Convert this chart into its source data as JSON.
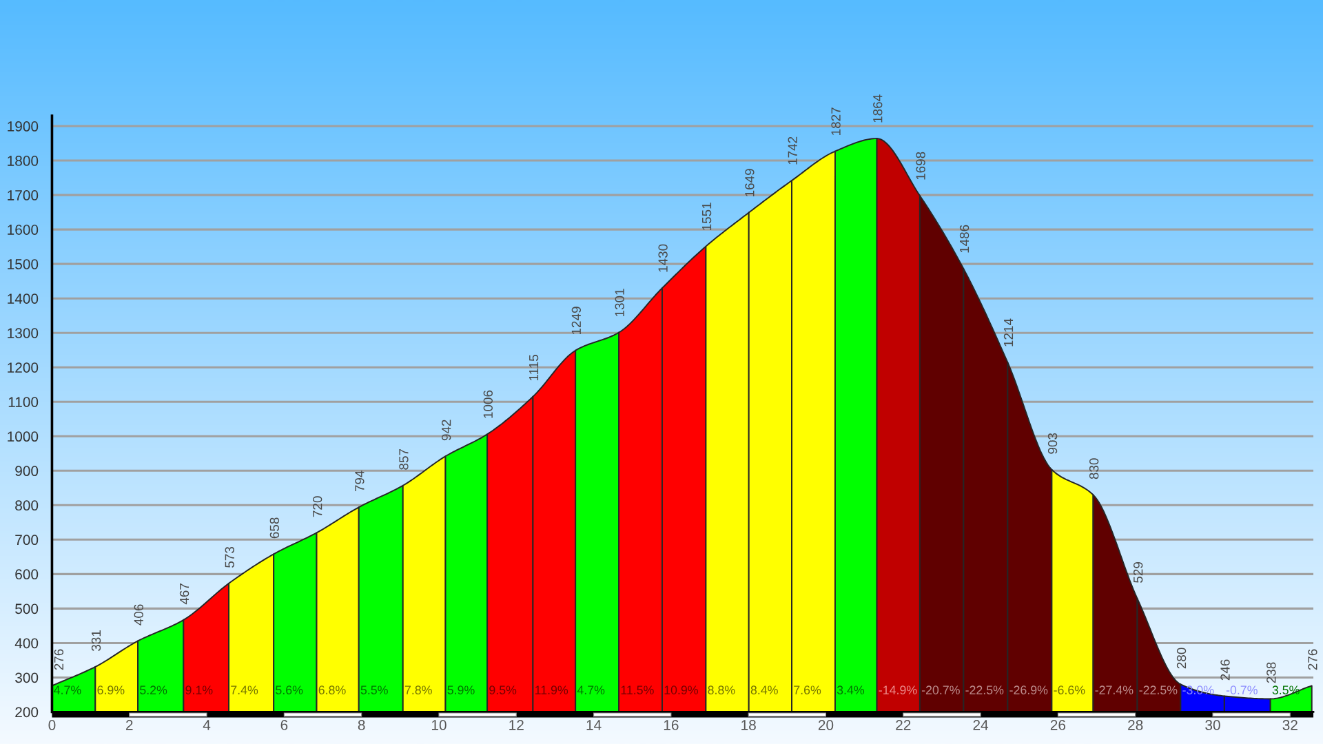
{
  "chart_data": {
    "type": "area",
    "series": [
      {
        "color": "#00ff00",
        "x": [
          0,
          1.12
        ],
        "values": [
          276,
          331
        ],
        "value_labels": [
          "276",
          "331"
        ]
      },
      {
        "color": "#ffff00",
        "x": [
          1.12,
          2.22
        ],
        "values": [
          331,
          406
        ],
        "value_labels": [
          null,
          "406"
        ]
      },
      {
        "color": "#00ff00",
        "x": [
          2.22,
          3.4
        ],
        "values": [
          406,
          467
        ],
        "value_labels": [
          null,
          "467"
        ]
      },
      {
        "color": "#ff0000",
        "x": [
          3.4,
          4.57
        ],
        "values": [
          467,
          573
        ],
        "value_labels": [
          null,
          "573"
        ]
      },
      {
        "color": "#ffff00",
        "x": [
          4.57,
          5.73
        ],
        "values": [
          573,
          658
        ],
        "value_labels": [
          null,
          "658"
        ]
      },
      {
        "color": "#00ff00",
        "x": [
          5.73,
          6.84
        ],
        "values": [
          658,
          720
        ],
        "value_labels": [
          null,
          "720"
        ]
      },
      {
        "color": "#ffff00",
        "x": [
          6.84,
          7.93
        ],
        "values": [
          720,
          794
        ],
        "value_labels": [
          null,
          "794"
        ]
      },
      {
        "color": "#00ff00",
        "x": [
          7.93,
          9.07
        ],
        "values": [
          794,
          857
        ],
        "value_labels": [
          null,
          "857"
        ]
      },
      {
        "color": "#ffff00",
        "x": [
          9.07,
          10.17
        ],
        "values": [
          857,
          942
        ],
        "value_labels": [
          null,
          "942"
        ]
      },
      {
        "color": "#00ff00",
        "x": [
          10.17,
          11.25
        ],
        "values": [
          942,
          1006
        ],
        "value_labels": [
          null,
          "1006"
        ]
      },
      {
        "color": "#ff0000",
        "x": [
          11.25,
          12.43
        ],
        "values": [
          1006,
          1115
        ],
        "value_labels": [
          null,
          "1115"
        ]
      },
      {
        "color": "#ff0000",
        "x": [
          12.43,
          13.53
        ],
        "values": [
          1115,
          1249
        ],
        "value_labels": [
          null,
          "1249"
        ]
      },
      {
        "color": "#00ff00",
        "x": [
          13.53,
          14.65
        ],
        "values": [
          1249,
          1301
        ],
        "value_labels": [
          null,
          "1301"
        ]
      },
      {
        "color": "#ff0000",
        "x": [
          14.65,
          15.77
        ],
        "values": [
          1301,
          1430
        ],
        "value_labels": [
          null,
          "1430"
        ]
      },
      {
        "color": "#ff0000",
        "x": [
          15.77,
          16.9
        ],
        "values": [
          1430,
          1551
        ],
        "value_labels": [
          null,
          "1551"
        ]
      },
      {
        "color": "#ffff00",
        "x": [
          16.9,
          18.01
        ],
        "values": [
          1551,
          1649
        ],
        "value_labels": [
          null,
          "1649"
        ]
      },
      {
        "color": "#ffff00",
        "x": [
          18.01,
          19.12
        ],
        "values": [
          1649,
          1742
        ],
        "value_labels": [
          null,
          "1742"
        ]
      },
      {
        "color": "#ffff00",
        "x": [
          19.12,
          20.24
        ],
        "values": [
          1742,
          1827
        ],
        "value_labels": [
          null,
          "1827"
        ]
      },
      {
        "color": "#00ff00",
        "x": [
          20.24,
          21.32
        ],
        "values": [
          1827,
          1864
        ],
        "value_labels": [
          null,
          "1864"
        ]
      },
      {
        "color": "#c00000",
        "x": [
          21.32,
          22.43
        ],
        "values": [
          1864,
          1698
        ],
        "value_labels": [
          null,
          "1698"
        ]
      },
      {
        "color": "#600000",
        "x": [
          22.43,
          23.56
        ],
        "values": [
          1698,
          1486
        ],
        "value_labels": [
          null,
          "1486"
        ]
      },
      {
        "color": "#600000",
        "x": [
          23.56,
          24.7
        ],
        "values": [
          1486,
          1214
        ],
        "value_labels": [
          null,
          "1214"
        ]
      },
      {
        "color": "#600000",
        "x": [
          24.7,
          25.84
        ],
        "values": [
          1214,
          903
        ],
        "value_labels": [
          null,
          "903"
        ]
      },
      {
        "color": "#ffff00",
        "x": [
          25.84,
          26.91
        ],
        "values": [
          903,
          830
        ],
        "value_labels": [
          null,
          "830"
        ]
      },
      {
        "color": "#600000",
        "x": [
          26.91,
          28.05
        ],
        "values": [
          830,
          529
        ],
        "value_labels": [
          null,
          "529"
        ]
      },
      {
        "color": "#600000",
        "x": [
          28.05,
          29.17
        ],
        "values": [
          529,
          280
        ],
        "value_labels": [
          null,
          "280"
        ]
      },
      {
        "color": "#0000ff",
        "x": [
          29.17,
          30.3
        ],
        "values": [
          280,
          246
        ],
        "value_labels": [
          null,
          "246"
        ]
      },
      {
        "color": "#0000ff",
        "x": [
          30.3,
          31.49
        ],
        "values": [
          246,
          238
        ],
        "value_labels": [
          null,
          "238"
        ]
      },
      {
        "color": "#00ff00",
        "x": [
          31.49,
          32.56
        ],
        "values": [
          238,
          276
        ],
        "value_labels": [
          null,
          "276"
        ]
      }
    ],
    "annotations": [
      "4.7%",
      "6.9%",
      "5.2%",
      "9.1%",
      "7.4%",
      "5.6%",
      "6.8%",
      "5.5%",
      "7.8%",
      "5.9%",
      "9.5%",
      "11.9%",
      "4.7%",
      "11.5%",
      "10.9%",
      "8.8%",
      "8.4%",
      "7.6%",
      "3.4%",
      "-14.9%",
      "-20.7%",
      "-22.5%",
      "-26.9%",
      "-6.6%",
      "-27.4%",
      "-22.5%",
      "-3.0%",
      "-0.7%",
      "3.5%"
    ],
    "xlim": [
      0,
      32.6
    ],
    "ylim": [
      200,
      1930
    ],
    "xticks": [
      0,
      2,
      4,
      6,
      8,
      10,
      12,
      14,
      16,
      18,
      20,
      22,
      24,
      26,
      28,
      30,
      32
    ],
    "yticks": [
      200,
      300,
      400,
      500,
      600,
      700,
      800,
      900,
      1000,
      1100,
      1200,
      1300,
      1400,
      1500,
      1600,
      1700,
      1800,
      1900
    ],
    "grid": "y"
  }
}
